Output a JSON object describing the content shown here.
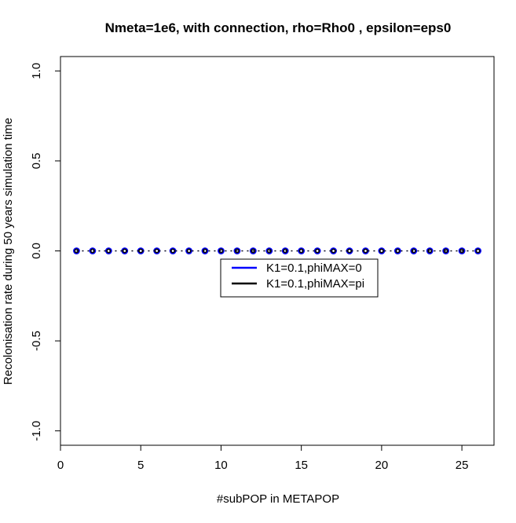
{
  "chart_data": {
    "type": "line",
    "title": "Nmeta=1e6,  with connection, rho=Rho0 , epsilon=eps0",
    "xlabel": "#subPOP in METAPOP",
    "ylabel": "Recolonisation rate during 50 years simulation time",
    "xlim": [
      0,
      27
    ],
    "ylim": [
      -1.08,
      1.08
    ],
    "x_ticks": [
      0,
      5,
      10,
      15,
      20,
      25
    ],
    "y_ticks": [
      -1.0,
      -0.5,
      0.0,
      0.5,
      1.0
    ],
    "x_tick_labels": [
      "0",
      "5",
      "10",
      "15",
      "20",
      "25"
    ],
    "y_tick_labels": [
      "-1.0",
      "-0.5",
      "0.0",
      "0.5",
      "1.0"
    ],
    "x": [
      1,
      2,
      3,
      4,
      5,
      6,
      7,
      8,
      9,
      10,
      11,
      12,
      13,
      14,
      15,
      16,
      17,
      18,
      19,
      20,
      21,
      22,
      23,
      24,
      25,
      26
    ],
    "series": [
      {
        "name": "K1=0.1,phiMAX=0",
        "color": "#0000ff",
        "values": [
          0,
          0,
          0,
          0,
          0,
          0,
          0,
          0,
          0,
          0,
          0,
          0,
          0,
          0,
          0,
          0,
          0,
          0,
          0,
          0,
          0,
          0,
          0,
          0,
          0,
          0
        ]
      },
      {
        "name": "K1=0.1,phiMAX=pi",
        "color": "#000000",
        "values": [
          0,
          0,
          0,
          0,
          0,
          0,
          0,
          0,
          0,
          0,
          0,
          0,
          0,
          0,
          0,
          0,
          0,
          0,
          0,
          0,
          0,
          0,
          0,
          0,
          0,
          0
        ]
      }
    ],
    "grid": false,
    "legend_position": "center"
  }
}
